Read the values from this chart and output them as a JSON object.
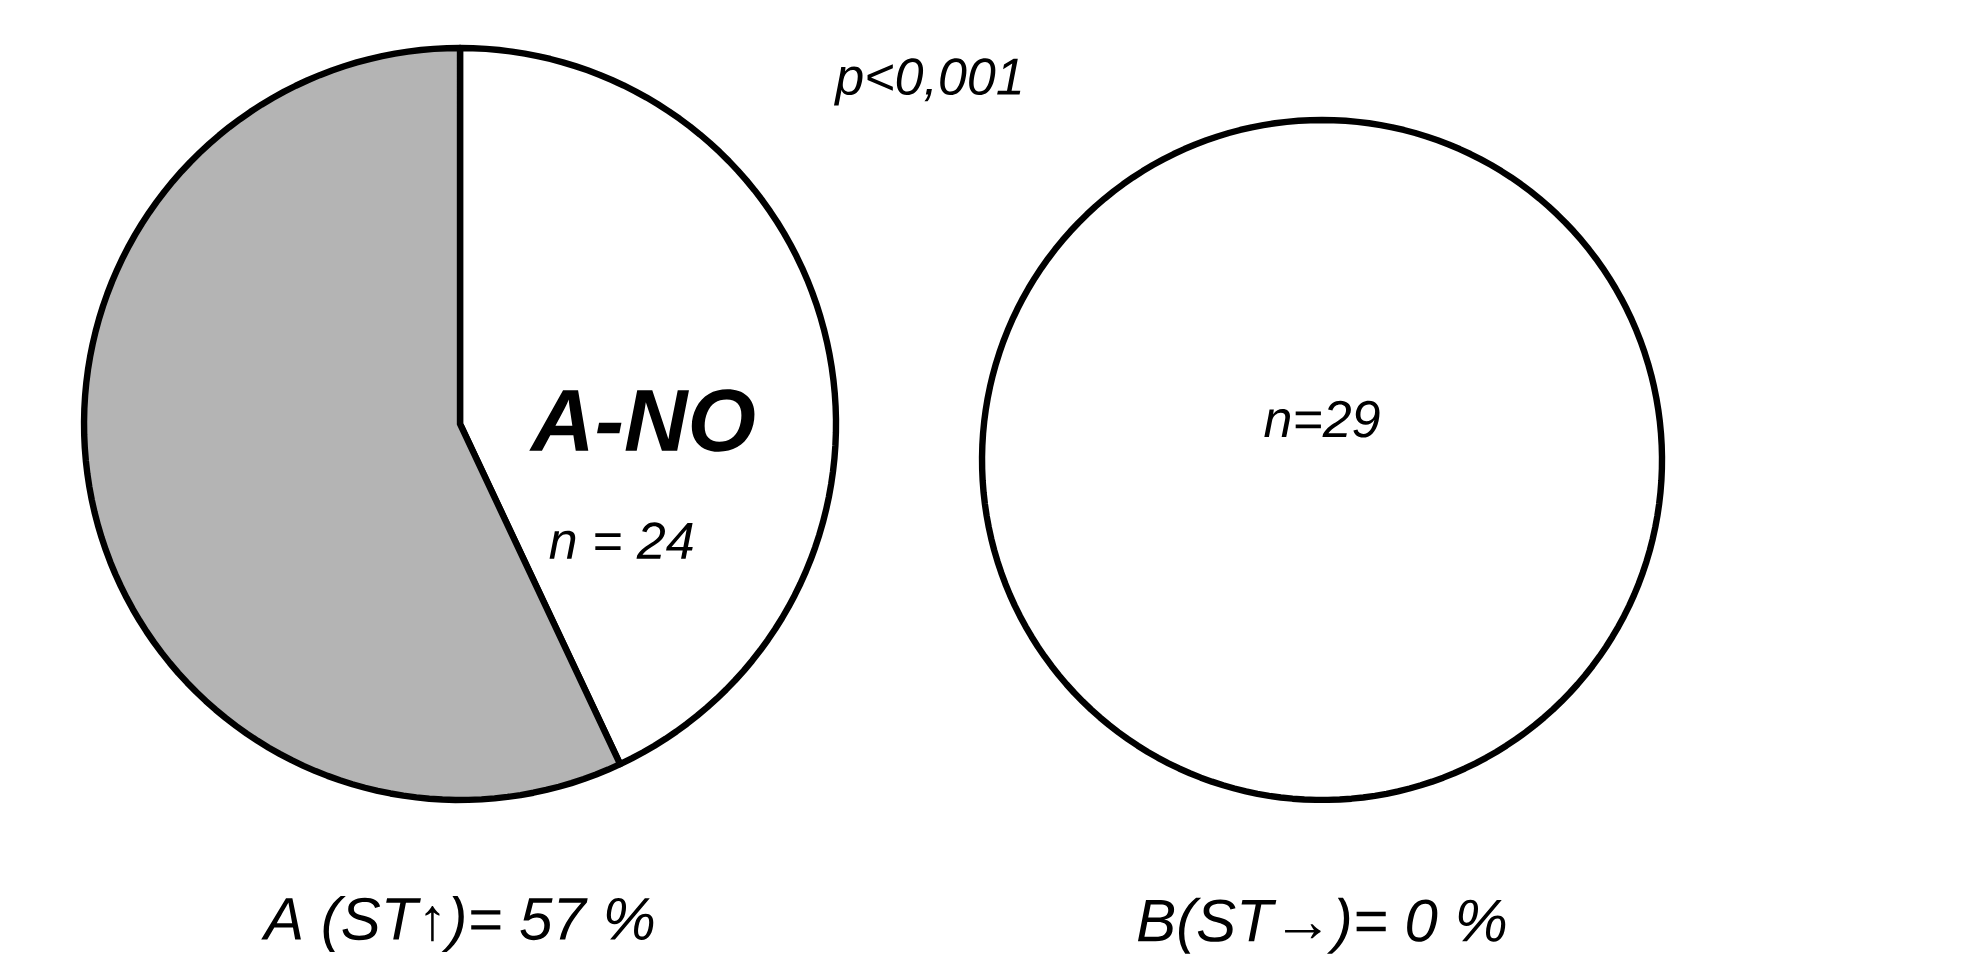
{
  "chart_data": [
    {
      "type": "pie",
      "title": "A (ST↑)= 57 %",
      "categories": [
        "A-NO",
        null
      ],
      "values": [
        43,
        57
      ],
      "colors": [
        "#ffffff",
        "#b4b4b4"
      ],
      "annotations": [
        "n = 24",
        "p<0,001"
      ]
    },
    {
      "type": "pie",
      "title": "B(ST→)= 0 %",
      "categories": [
        null
      ],
      "values": [
        100
      ],
      "colors": [
        "#ffffff"
      ],
      "annotations": [
        "n=29"
      ]
    }
  ]
}
